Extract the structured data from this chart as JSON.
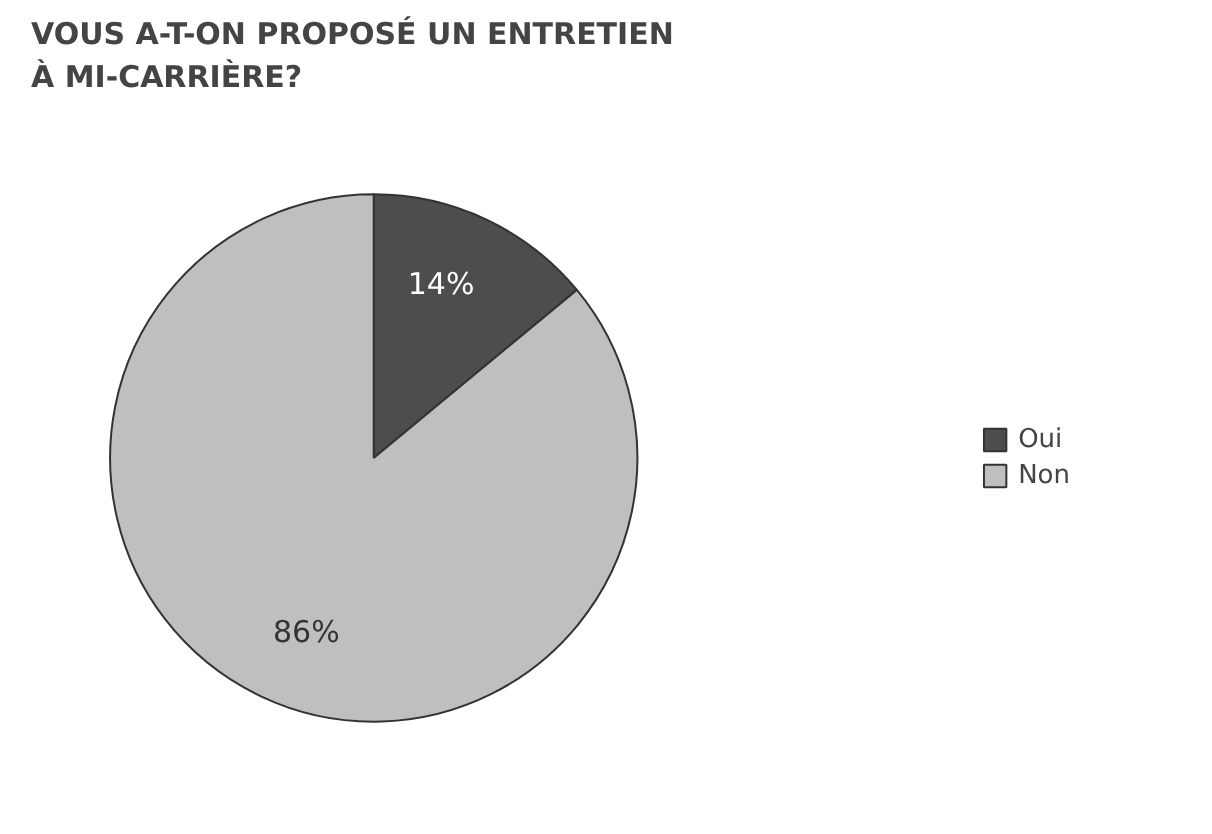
{
  "chart_data": {
    "type": "pie",
    "title": "VOUS A-T-ON PROPOSÉ UN ENTRETIEN\nÀ MI-CARRIÈRE?",
    "categories": [
      "Oui",
      "Non"
    ],
    "values": [
      14,
      86
    ],
    "colors": [
      "#4d4d4d",
      "#bfbfbf"
    ],
    "value_labels": [
      "14%",
      "86%"
    ],
    "legend": "right"
  }
}
